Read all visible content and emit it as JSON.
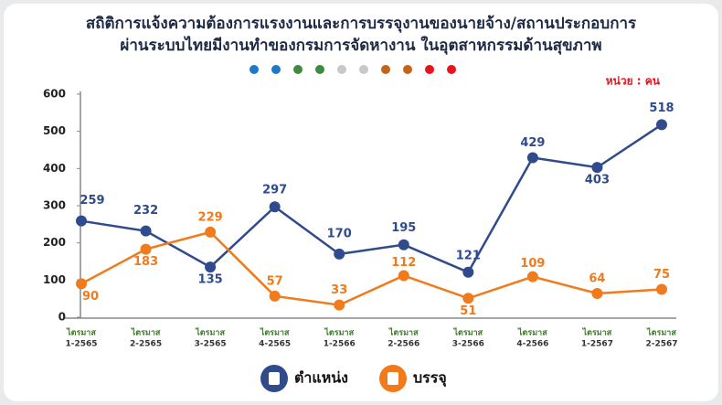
{
  "chart_data": {
    "type": "line",
    "title": [
      "สถิติการแจ้งความต้องการแรงงานและการบรรจุงานของนายจ้าง/สถานประกอบการ",
      "ผ่านระบบไทยมีงานทำของกรมการจัดหางาน ในอุตสาหกรรมด้านสุขภาพ"
    ],
    "unit_label": "หน่วย : คน",
    "categories": [
      [
        "ไตรมาส",
        "1-2565"
      ],
      [
        "ไตรมาส",
        "2-2565"
      ],
      [
        "ไตรมาส",
        "3-2565"
      ],
      [
        "ไตรมาส",
        "4-2565"
      ],
      [
        "ไตรมาส",
        "1-2566"
      ],
      [
        "ไตรมาส",
        "2-2566"
      ],
      [
        "ไตรมาส",
        "3-2566"
      ],
      [
        "ไตรมาส",
        "4-2566"
      ],
      [
        "ไตรมาส",
        "1-2567"
      ],
      [
        "ไตรมาส",
        "2-2567"
      ]
    ],
    "series": [
      {
        "name": "ตำแหน่ง",
        "color": "#2f4b8c",
        "values": [
          259,
          232,
          135,
          297,
          170,
          195,
          121,
          429,
          403,
          518
        ]
      },
      {
        "name": "บรรจุ",
        "color": "#f07a1c",
        "values": [
          90,
          183,
          229,
          57,
          33,
          112,
          51,
          109,
          64,
          75
        ]
      }
    ],
    "ylim": [
      0,
      600
    ],
    "yticks": [
      0,
      100,
      200,
      300,
      400,
      500,
      600
    ]
  }
}
